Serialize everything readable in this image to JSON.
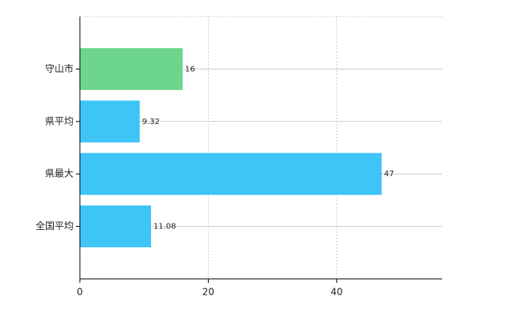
{
  "chart_data": {
    "type": "bar",
    "orientation": "horizontal",
    "categories": [
      "守山市",
      "県平均",
      "県最大",
      "全国平均"
    ],
    "values": [
      16,
      9.32,
      47,
      11.08
    ],
    "colors": [
      "#6dd68c",
      "#3ec4f6",
      "#3ec4f6",
      "#3ec4f6"
    ],
    "xlim": [
      0,
      56.4
    ],
    "xticks": [
      0,
      20,
      40
    ],
    "grid": true
  }
}
